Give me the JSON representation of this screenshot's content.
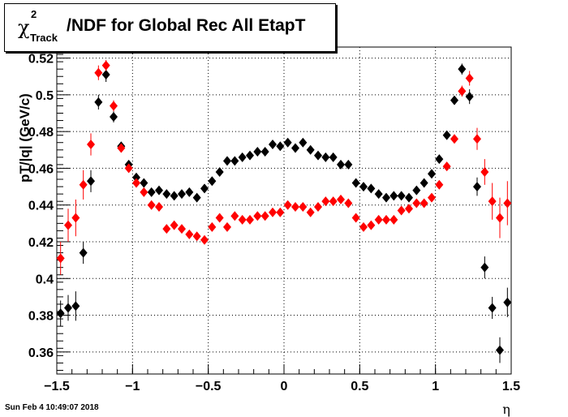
{
  "title": {
    "symbol": "χ",
    "superscript": "2",
    "subscript": "Track",
    "text": "/NDF for Global Rec All EtapT"
  },
  "footer": {
    "timestamp": "Sun Feb  4 10:49:07 2018"
  },
  "colors": {
    "series_black": "#000000",
    "series_red": "#ff0000"
  },
  "chart_data": {
    "type": "scatter",
    "title": "χ²Track/NDF for Global Rec All EtapT",
    "xlabel": "η",
    "ylabel": "pT/|q| (GeV/c)",
    "xlim": [
      -1.5,
      1.5
    ],
    "ylim": [
      0.348,
      0.526
    ],
    "x_ticks": [
      "−1.5",
      "−1",
      "−0.5",
      "0",
      "0.5",
      "1",
      "1.5"
    ],
    "y_ticks": [
      "0.36",
      "0.38",
      "0.4",
      "0.42",
      "0.44",
      "0.46",
      "0.48",
      "0.5",
      "0.52"
    ],
    "y_tick_values": [
      0.36,
      0.38,
      0.4,
      0.42,
      0.44,
      0.46,
      0.48,
      0.5,
      0.52
    ],
    "x_tick_values": [
      -1.5,
      -1.0,
      -0.5,
      0.0,
      0.5,
      1.0,
      1.5
    ],
    "grid": true,
    "series": [
      {
        "color": "#000000",
        "points": [
          [
            -1.475,
            0.381,
            0.007
          ],
          [
            -1.425,
            0.384,
            0.007
          ],
          [
            -1.375,
            0.385,
            0.008
          ],
          [
            -1.325,
            0.414,
            0.006
          ],
          [
            -1.275,
            0.453,
            0.006
          ],
          [
            -1.225,
            0.496,
            0.004
          ],
          [
            -1.175,
            0.511,
            0.004
          ],
          [
            -1.125,
            0.488,
            0.003
          ],
          [
            -1.075,
            0.472,
            0.002
          ],
          [
            -1.025,
            0.462,
            0.002
          ],
          [
            -0.975,
            0.455,
            0.002
          ],
          [
            -0.925,
            0.452,
            0.001
          ],
          [
            -0.875,
            0.447,
            0.001
          ],
          [
            -0.825,
            0.448,
            0.001
          ],
          [
            -0.775,
            0.446,
            0.001
          ],
          [
            -0.725,
            0.445,
            0.001
          ],
          [
            -0.675,
            0.446,
            0.001
          ],
          [
            -0.625,
            0.447,
            0.001
          ],
          [
            -0.575,
            0.444,
            0.001
          ],
          [
            -0.525,
            0.449,
            0.001
          ],
          [
            -0.475,
            0.453,
            0.001
          ],
          [
            -0.425,
            0.458,
            0.001
          ],
          [
            -0.375,
            0.464,
            0.001
          ],
          [
            -0.325,
            0.464,
            0.001
          ],
          [
            -0.275,
            0.466,
            0.001
          ],
          [
            -0.225,
            0.467,
            0.001
          ],
          [
            -0.175,
            0.469,
            0.001
          ],
          [
            -0.125,
            0.469,
            0.001
          ],
          [
            -0.075,
            0.473,
            0.001
          ],
          [
            -0.025,
            0.472,
            0.001
          ],
          [
            0.025,
            0.474,
            0.001
          ],
          [
            0.075,
            0.471,
            0.001
          ],
          [
            0.125,
            0.474,
            0.001
          ],
          [
            0.175,
            0.47,
            0.001
          ],
          [
            0.225,
            0.467,
            0.001
          ],
          [
            0.275,
            0.466,
            0.001
          ],
          [
            0.325,
            0.466,
            0.001
          ],
          [
            0.375,
            0.462,
            0.001
          ],
          [
            0.425,
            0.462,
            0.001
          ],
          [
            0.475,
            0.452,
            0.001
          ],
          [
            0.525,
            0.45,
            0.001
          ],
          [
            0.575,
            0.449,
            0.001
          ],
          [
            0.625,
            0.446,
            0.001
          ],
          [
            0.675,
            0.444,
            0.001
          ],
          [
            0.725,
            0.445,
            0.001
          ],
          [
            0.775,
            0.445,
            0.001
          ],
          [
            0.825,
            0.444,
            0.001
          ],
          [
            0.875,
            0.448,
            0.001
          ],
          [
            0.925,
            0.452,
            0.001
          ],
          [
            0.975,
            0.457,
            0.002
          ],
          [
            1.025,
            0.465,
            0.002
          ],
          [
            1.075,
            0.478,
            0.002
          ],
          [
            1.125,
            0.497,
            0.002
          ],
          [
            1.175,
            0.514,
            0.003
          ],
          [
            1.225,
            0.499,
            0.004
          ],
          [
            1.275,
            0.45,
            0.005
          ],
          [
            1.325,
            0.406,
            0.006
          ],
          [
            1.375,
            0.384,
            0.006
          ],
          [
            1.425,
            0.361,
            0.007
          ],
          [
            1.475,
            0.387,
            0.008
          ]
        ]
      },
      {
        "color": "#ff0000",
        "points": [
          [
            -1.475,
            0.411,
            0.009
          ],
          [
            -1.425,
            0.429,
            0.009
          ],
          [
            -1.375,
            0.433,
            0.01
          ],
          [
            -1.325,
            0.451,
            0.008
          ],
          [
            -1.275,
            0.473,
            0.006
          ],
          [
            -1.225,
            0.512,
            0.004
          ],
          [
            -1.175,
            0.516,
            0.003
          ],
          [
            -1.125,
            0.494,
            0.003
          ],
          [
            -1.075,
            0.471,
            0.002
          ],
          [
            -1.025,
            0.46,
            0.002
          ],
          [
            -0.975,
            0.452,
            0.002
          ],
          [
            -0.925,
            0.447,
            0.001
          ],
          [
            -0.875,
            0.44,
            0.001
          ],
          [
            -0.825,
            0.439,
            0.001
          ],
          [
            -0.775,
            0.427,
            0.001
          ],
          [
            -0.725,
            0.429,
            0.001
          ],
          [
            -0.675,
            0.427,
            0.001
          ],
          [
            -0.625,
            0.424,
            0.001
          ],
          [
            -0.575,
            0.423,
            0.001
          ],
          [
            -0.525,
            0.421,
            0.001
          ],
          [
            -0.475,
            0.428,
            0.001
          ],
          [
            -0.425,
            0.433,
            0.001
          ],
          [
            -0.375,
            0.428,
            0.001
          ],
          [
            -0.325,
            0.434,
            0.001
          ],
          [
            -0.275,
            0.432,
            0.001
          ],
          [
            -0.225,
            0.432,
            0.001
          ],
          [
            -0.175,
            0.434,
            0.001
          ],
          [
            -0.125,
            0.434,
            0.001
          ],
          [
            -0.075,
            0.436,
            0.001
          ],
          [
            -0.025,
            0.436,
            0.001
          ],
          [
            0.025,
            0.44,
            0.001
          ],
          [
            0.075,
            0.439,
            0.001
          ],
          [
            0.125,
            0.439,
            0.001
          ],
          [
            0.175,
            0.436,
            0.001
          ],
          [
            0.225,
            0.439,
            0.001
          ],
          [
            0.275,
            0.442,
            0.001
          ],
          [
            0.325,
            0.442,
            0.001
          ],
          [
            0.375,
            0.443,
            0.001
          ],
          [
            0.425,
            0.441,
            0.001
          ],
          [
            0.475,
            0.433,
            0.001
          ],
          [
            0.525,
            0.428,
            0.001
          ],
          [
            0.575,
            0.429,
            0.001
          ],
          [
            0.625,
            0.432,
            0.001
          ],
          [
            0.675,
            0.432,
            0.001
          ],
          [
            0.725,
            0.432,
            0.001
          ],
          [
            0.775,
            0.437,
            0.001
          ],
          [
            0.825,
            0.438,
            0.001
          ],
          [
            0.875,
            0.441,
            0.001
          ],
          [
            0.925,
            0.441,
            0.001
          ],
          [
            0.975,
            0.444,
            0.002
          ],
          [
            1.025,
            0.451,
            0.002
          ],
          [
            1.075,
            0.461,
            0.002
          ],
          [
            1.125,
            0.476,
            0.002
          ],
          [
            1.175,
            0.502,
            0.003
          ],
          [
            1.225,
            0.509,
            0.004
          ],
          [
            1.275,
            0.476,
            0.006
          ],
          [
            1.325,
            0.458,
            0.007
          ],
          [
            1.375,
            0.442,
            0.01
          ],
          [
            1.425,
            0.433,
            0.011
          ],
          [
            1.475,
            0.441,
            0.012
          ]
        ]
      }
    ]
  }
}
